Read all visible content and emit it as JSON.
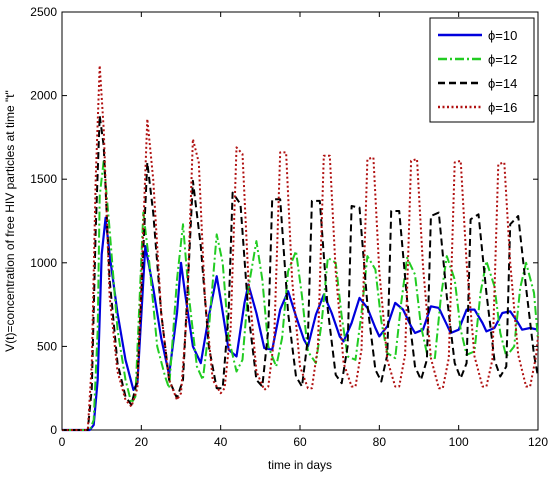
{
  "chart_data": {
    "type": "line",
    "title": "",
    "xlabel": "time in days",
    "ylabel": "V(t)=concentration of free HIV particles at time \"t\"",
    "xlim": [
      0,
      120
    ],
    "ylim": [
      0,
      2500
    ],
    "xticks": [
      0,
      20,
      40,
      60,
      80,
      100,
      120
    ],
    "yticks": [
      0,
      500,
      1000,
      1500,
      2000,
      2500
    ],
    "grid": false,
    "legend_position": "top-right",
    "series": [
      {
        "name": "ϕ=10",
        "color": "#0000dd",
        "dash": "solid",
        "x": [
          0,
          7,
          8,
          9,
          10,
          11,
          12,
          14,
          16,
          18,
          19,
          21,
          23,
          25,
          27,
          29,
          30,
          31,
          33,
          35,
          37,
          39,
          40,
          42,
          44,
          46,
          47,
          49,
          51,
          53,
          55,
          57,
          59,
          61,
          62,
          64,
          66,
          68,
          70,
          71,
          73,
          75,
          77,
          79,
          80,
          82,
          84,
          86,
          88,
          89,
          91,
          93,
          95,
          97,
          98,
          100,
          102,
          104,
          106,
          107,
          109,
          111,
          113,
          115,
          116,
          118,
          120
        ],
        "y": [
          0,
          0,
          30,
          300,
          1050,
          1270,
          1050,
          700,
          420,
          240,
          280,
          1100,
          850,
          550,
          330,
          700,
          1000,
          820,
          500,
          400,
          680,
          920,
          780,
          480,
          440,
          760,
          870,
          700,
          490,
          480,
          720,
          830,
          680,
          540,
          500,
          690,
          810,
          700,
          560,
          530,
          640,
          790,
          730,
          610,
          560,
          620,
          760,
          720,
          620,
          580,
          600,
          740,
          730,
          630,
          580,
          600,
          720,
          720,
          640,
          590,
          610,
          700,
          710,
          640,
          600,
          610,
          600
        ]
      },
      {
        "name": "ϕ=12",
        "color": "#22cc22",
        "dash": "dashdot",
        "x": [
          0,
          7,
          8,
          9,
          9.5,
          10.5,
          12,
          14,
          16,
          17.5,
          18.5,
          20.5,
          22,
          24,
          26,
          27,
          29,
          30.5,
          32,
          34,
          35.5,
          37,
          39,
          40.5,
          42,
          44,
          45.5,
          47,
          49,
          50.5,
          52,
          54,
          55.5,
          57,
          59,
          60.5,
          62,
          64,
          65.5,
          67,
          69,
          70.5,
          72,
          74,
          75.5,
          77,
          79,
          80.5,
          82,
          84,
          85.5,
          87,
          89,
          90.5,
          92,
          94,
          95.5,
          97,
          99,
          100.5,
          102,
          104,
          105.5,
          107,
          109,
          110.5,
          112,
          114,
          115.5,
          117,
          119,
          120
        ],
        "y": [
          0,
          0,
          60,
          600,
          1400,
          1610,
          1200,
          600,
          300,
          160,
          200,
          1300,
          1000,
          500,
          320,
          250,
          900,
          1230,
          800,
          380,
          300,
          600,
          1170,
          1000,
          550,
          350,
          420,
          850,
          1130,
          900,
          500,
          380,
          550,
          950,
          1070,
          800,
          470,
          400,
          650,
          1030,
          1000,
          680,
          440,
          420,
          700,
          1040,
          960,
          650,
          460,
          430,
          760,
          1030,
          930,
          620,
          460,
          430,
          790,
          1040,
          900,
          600,
          450,
          470,
          820,
          1010,
          860,
          580,
          440,
          500,
          850,
          1000,
          820,
          540
        ]
      },
      {
        "name": "ϕ=14",
        "color": "#000000",
        "dash": "dashed",
        "x": [
          0,
          6.5,
          7.5,
          8.5,
          9.5,
          10.5,
          12,
          14,
          16,
          17.5,
          19,
          21.5,
          23,
          25,
          27,
          29,
          30.5,
          32,
          33,
          35,
          37,
          39,
          40.5,
          42,
          43,
          45,
          47,
          49,
          50.5,
          52,
          53,
          55,
          57,
          59,
          60.5,
          62,
          63,
          65,
          67,
          69,
          70.5,
          72,
          73,
          75,
          77,
          79,
          80.5,
          82,
          83,
          85,
          87,
          89,
          90.5,
          92,
          93,
          95,
          97,
          99,
          100.5,
          102,
          103,
          105,
          107,
          109,
          110.5,
          112,
          113,
          115,
          117,
          119,
          120
        ],
        "y": [
          0,
          0,
          250,
          1200,
          1880,
          1700,
          900,
          400,
          200,
          150,
          300,
          1600,
          1300,
          700,
          300,
          190,
          300,
          1000,
          1490,
          1100,
          500,
          250,
          250,
          700,
          1420,
          1350,
          700,
          300,
          260,
          600,
          1380,
          1380,
          700,
          320,
          260,
          550,
          1370,
          1370,
          720,
          330,
          280,
          500,
          1340,
          1330,
          750,
          360,
          290,
          450,
          1310,
          1310,
          780,
          380,
          300,
          420,
          1280,
          1300,
          800,
          400,
          310,
          400,
          1260,
          1290,
          820,
          420,
          320,
          380,
          1230,
          1280,
          850,
          450,
          320
        ]
      },
      {
        "name": "ϕ=16",
        "color": "#b01010",
        "dash": "dotted",
        "x": [
          0,
          6.5,
          7.5,
          8.5,
          9.5,
          10.5,
          12,
          14,
          16,
          17.5,
          19,
          21.5,
          23,
          25,
          27,
          29,
          30,
          31.5,
          33,
          34.5,
          36,
          38,
          40,
          41,
          42.5,
          44,
          45.5,
          47,
          49,
          51,
          52,
          53.5,
          55,
          56.5,
          58,
          60,
          62,
          63,
          64.5,
          66,
          67.5,
          69,
          71,
          73,
          74,
          75.5,
          77,
          78.5,
          80,
          82,
          84,
          85,
          86.5,
          88,
          89.5,
          91,
          93,
          95,
          96,
          97.5,
          99,
          100.5,
          102,
          104,
          106,
          107,
          108.5,
          110,
          111.5,
          113,
          115,
          117,
          118,
          119.5,
          120
        ],
        "y": [
          0,
          0,
          400,
          1500,
          2180,
          1800,
          800,
          350,
          180,
          140,
          250,
          1860,
          1500,
          700,
          300,
          180,
          220,
          700,
          1740,
          1600,
          800,
          300,
          220,
          250,
          600,
          1690,
          1650,
          900,
          350,
          240,
          260,
          550,
          1660,
          1660,
          900,
          380,
          250,
          250,
          500,
          1640,
          1640,
          950,
          400,
          260,
          260,
          480,
          1620,
          1630,
          950,
          420,
          260,
          260,
          450,
          1610,
          1620,
          980,
          430,
          250,
          250,
          430,
          1600,
          1610,
          1000,
          440,
          260,
          260,
          420,
          1590,
          1600,
          1000,
          450,
          260,
          260,
          440,
          560
        ]
      }
    ]
  }
}
